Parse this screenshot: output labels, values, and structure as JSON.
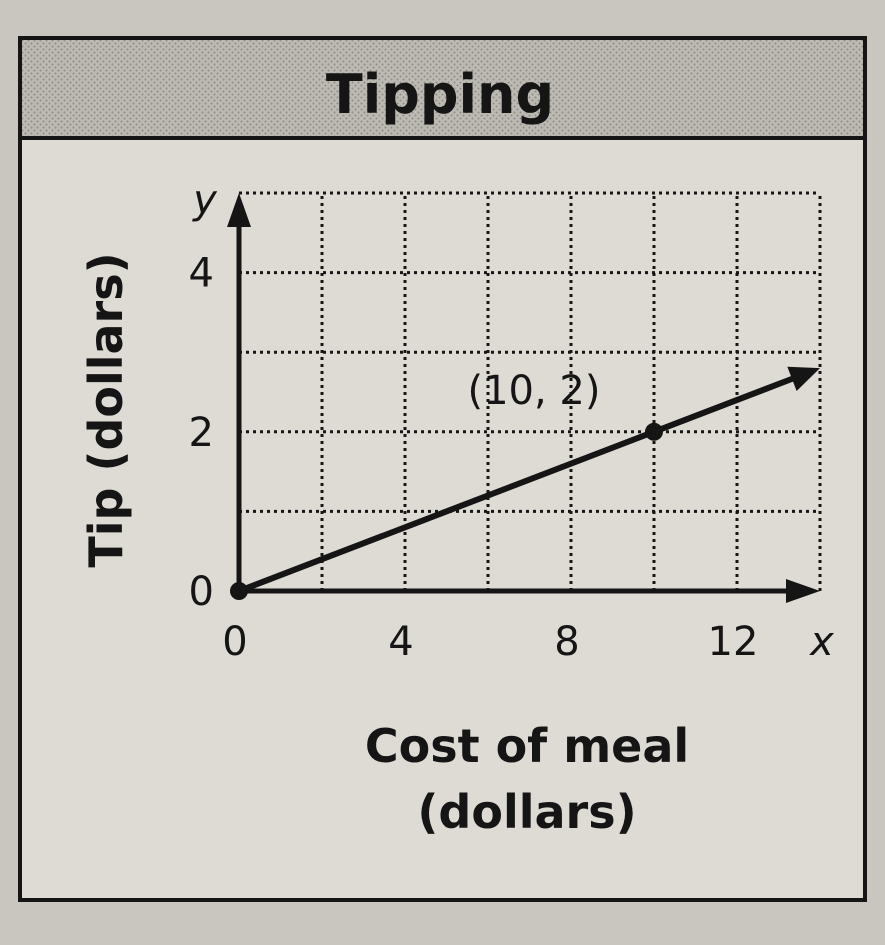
{
  "chart_data": {
    "type": "line",
    "title": "Tipping",
    "xlabel_line1": "Cost of meal",
    "xlabel_line2": "(dollars)",
    "ylabel": "Tip (dollars)",
    "x_axis_letter": "x",
    "y_axis_letter": "y",
    "xlim": [
      0,
      14
    ],
    "ylim": [
      0,
      5
    ],
    "x_ticks": [
      "0",
      "4",
      "8",
      "12"
    ],
    "y_ticks": [
      "0",
      "2",
      "4"
    ],
    "grid": true,
    "series": [
      {
        "x": [
          0,
          10,
          14
        ],
        "y": [
          0,
          2,
          2.8
        ],
        "arrow_end": true
      }
    ],
    "points": [
      {
        "x": 0,
        "y": 0
      },
      {
        "x": 10,
        "y": 2,
        "label": "(10, 2)"
      }
    ]
  },
  "colors": {
    "ink": "#151515",
    "paper": "#dedbd5",
    "title_band": "#b9b6b0",
    "background": "#c9c6c0"
  }
}
